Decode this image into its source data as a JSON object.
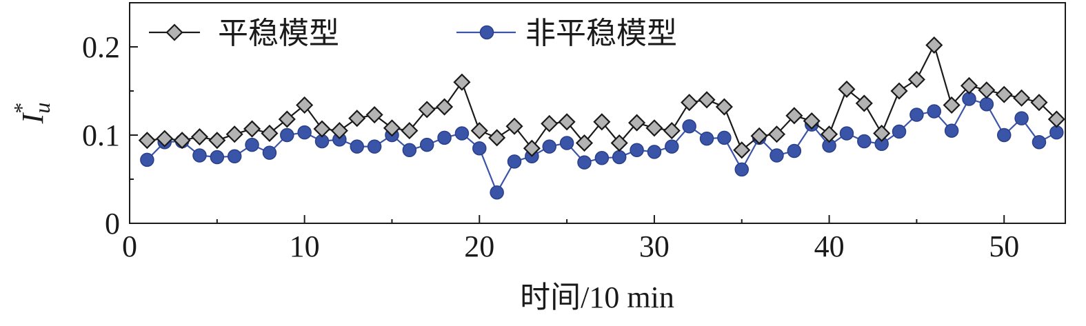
{
  "chart_data": {
    "type": "line",
    "title": "",
    "xlabel": "时间/10 min",
    "ylabel": {
      "main": "I",
      "subscript": "u",
      "superscript": "*"
    },
    "xlim": [
      0,
      53.5
    ],
    "ylim": [
      0,
      0.25
    ],
    "xticks": [
      0,
      10,
      20,
      30,
      40,
      50
    ],
    "xtick_labels": [
      "0",
      "10",
      "20",
      "30",
      "40",
      "50"
    ],
    "yticks": [
      0,
      0.1,
      0.2
    ],
    "ytick_labels": [
      "0",
      "0.1",
      "0.2"
    ],
    "grid": false,
    "legend_position": "top",
    "x": [
      1,
      2,
      3,
      4,
      5,
      6,
      7,
      8,
      9,
      10,
      11,
      12,
      13,
      14,
      15,
      16,
      17,
      18,
      19,
      20,
      21,
      22,
      23,
      24,
      25,
      26,
      27,
      28,
      29,
      30,
      31,
      32,
      33,
      34,
      35,
      36,
      37,
      38,
      39,
      40,
      41,
      42,
      43,
      44,
      45,
      46,
      47,
      48,
      49,
      50,
      51,
      52,
      53
    ],
    "series": [
      {
        "name": "平稳模型",
        "color": "#1a1a1a",
        "marker": "diamond",
        "marker_fill": "#b3b3b3",
        "values": [
          0.094,
          0.096,
          0.094,
          0.098,
          0.094,
          0.101,
          0.107,
          0.102,
          0.118,
          0.134,
          0.107,
          0.105,
          0.119,
          0.123,
          0.108,
          0.105,
          0.129,
          0.132,
          0.16,
          0.105,
          0.097,
          0.11,
          0.085,
          0.113,
          0.115,
          0.091,
          0.115,
          0.091,
          0.114,
          0.108,
          0.105,
          0.137,
          0.14,
          0.132,
          0.083,
          0.099,
          0.101,
          0.122,
          0.116,
          0.101,
          0.152,
          0.136,
          0.102,
          0.15,
          0.163,
          0.202,
          0.134,
          0.156,
          0.151,
          0.146,
          0.142,
          0.137,
          0.118
        ]
      },
      {
        "name": "非平稳模型",
        "color": "#3a54a8",
        "marker": "circle",
        "marker_fill": "#3a54a8",
        "values": [
          0.072,
          0.092,
          0.093,
          0.077,
          0.075,
          0.076,
          0.089,
          0.08,
          0.1,
          0.103,
          0.093,
          0.095,
          0.087,
          0.087,
          0.1,
          0.083,
          0.089,
          0.097,
          0.102,
          0.085,
          0.035,
          0.07,
          0.076,
          0.087,
          0.091,
          0.069,
          0.074,
          0.075,
          0.083,
          0.081,
          0.087,
          0.11,
          0.096,
          0.097,
          0.061,
          0.097,
          0.077,
          0.082,
          0.112,
          0.088,
          0.102,
          0.093,
          0.09,
          0.104,
          0.123,
          0.127,
          0.105,
          0.141,
          0.135,
          0.1,
          0.119,
          0.092,
          0.103
        ]
      }
    ]
  }
}
